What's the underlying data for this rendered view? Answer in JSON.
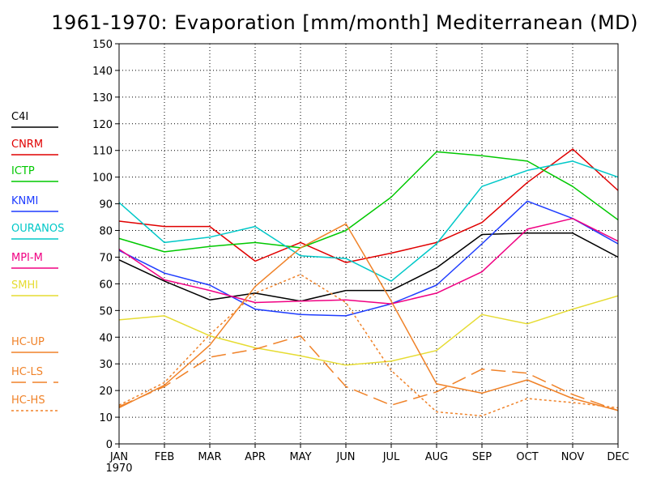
{
  "chart_data": {
    "type": "line",
    "title": "1961-1970: Evaporation [mm/month] Mediterranean (MD)",
    "xlabel": "",
    "ylabel": "",
    "ylim": [
      0,
      150
    ],
    "yticks": [
      0,
      10,
      20,
      30,
      40,
      50,
      60,
      70,
      80,
      90,
      100,
      110,
      120,
      130,
      140,
      150
    ],
    "categories": [
      "JAN",
      "FEB",
      "MAR",
      "APR",
      "MAY",
      "JUN",
      "JUL",
      "AUG",
      "SEP",
      "OCT",
      "NOV",
      "DEC"
    ],
    "x_sublabel": "1970",
    "grid": true,
    "legend_position": "left",
    "series": [
      {
        "name": "C4I",
        "color": "#000000",
        "dash": "solid",
        "values": [
          69,
          61,
          54,
          56.5,
          53.5,
          57.5,
          57.5,
          66,
          78.5,
          79,
          79,
          70
        ]
      },
      {
        "name": "CNRM",
        "color": "#e00000",
        "dash": "solid",
        "values": [
          83.5,
          81.5,
          81.5,
          68.5,
          75.5,
          68,
          71.5,
          75.5,
          83,
          98,
          110.5,
          95
        ]
      },
      {
        "name": "ICTP",
        "color": "#00c800",
        "dash": "solid",
        "values": [
          77,
          72,
          74,
          75.5,
          73.5,
          80,
          92.5,
          109.5,
          108,
          106,
          96.5,
          84
        ]
      },
      {
        "name": "KNMI",
        "color": "#1e3cff",
        "dash": "solid",
        "values": [
          72.5,
          64,
          59.5,
          50.5,
          48.5,
          48,
          52.5,
          59.5,
          75,
          91,
          84.5,
          75
        ]
      },
      {
        "name": "OURANOS",
        "color": "#00c8c8",
        "dash": "solid",
        "values": [
          90.5,
          75.5,
          77.5,
          81.5,
          70.5,
          69.5,
          61,
          75,
          96.5,
          102.5,
          106,
          100
        ]
      },
      {
        "name": "MPI-M",
        "color": "#f00082",
        "dash": "solid",
        "values": [
          73,
          61.5,
          57.5,
          53,
          53.5,
          54,
          52.5,
          56.5,
          64.5,
          80.5,
          84.5,
          76
        ]
      },
      {
        "name": "SMHI",
        "color": "#e6dc32",
        "dash": "solid",
        "values": [
          46.5,
          48,
          40.5,
          36,
          33,
          29.5,
          31,
          35,
          48.5,
          45,
          50.5,
          55.5
        ]
      },
      {
        "name": "HC-UP",
        "color": "#f08228",
        "dash": "solid",
        "values": [
          13.5,
          22,
          37,
          59,
          73.5,
          82.5,
          53.5,
          22.5,
          19,
          24,
          17,
          12.5
        ]
      },
      {
        "name": "HC-LS",
        "color": "#f08228",
        "dash": "long",
        "values": [
          14,
          21.5,
          32.5,
          35.5,
          40.5,
          21.5,
          14.5,
          19.5,
          28,
          26.5,
          18.5,
          12.5
        ]
      },
      {
        "name": "HC-HS",
        "color": "#f08228",
        "dash": "short",
        "values": [
          14.5,
          23,
          41,
          56.5,
          63.5,
          53,
          27.5,
          12,
          10.5,
          17,
          15.5,
          13.5
        ]
      }
    ]
  }
}
